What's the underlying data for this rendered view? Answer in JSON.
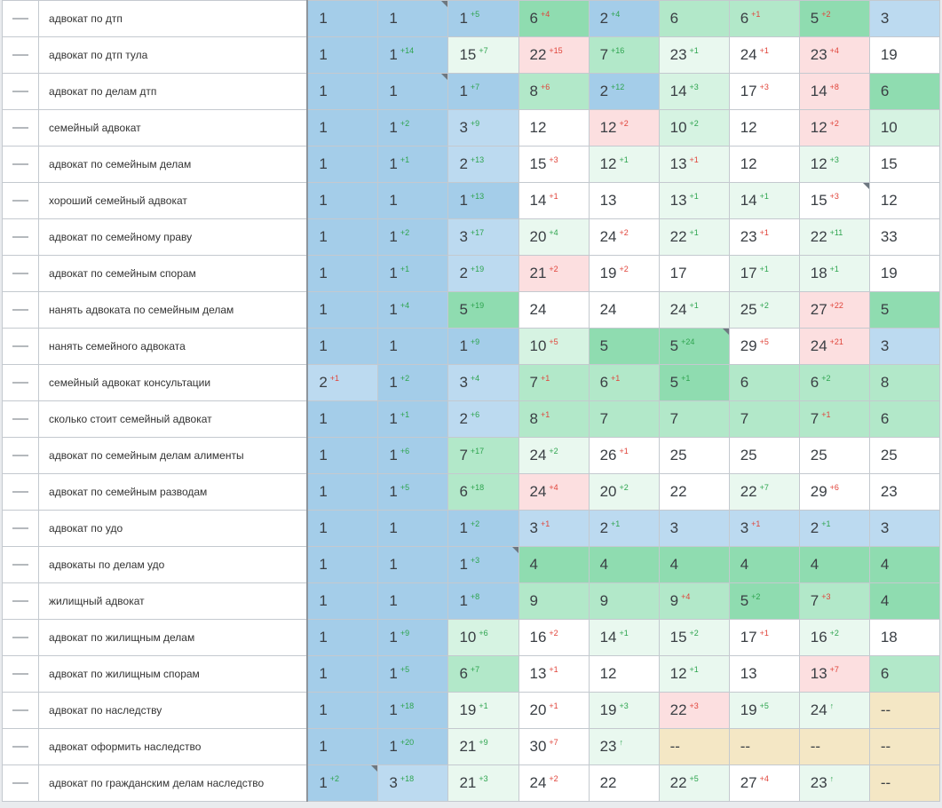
{
  "rows": [
    {
      "keyword": "адвокат по дтп",
      "cells": [
        {
          "v": "1",
          "bg": "b1"
        },
        {
          "v": "1",
          "bg": "b1",
          "corner": true
        },
        {
          "v": "1",
          "d": "+5",
          "dir": "up",
          "bg": "b1"
        },
        {
          "v": "6",
          "d": "+4",
          "dir": "down",
          "bg": "g1"
        },
        {
          "v": "2",
          "d": "+4",
          "dir": "up",
          "bg": "b1"
        },
        {
          "v": "6",
          "bg": "g2"
        },
        {
          "v": "6",
          "d": "+1",
          "dir": "down",
          "bg": "g2"
        },
        {
          "v": "5",
          "d": "+2",
          "dir": "down",
          "bg": "g1"
        },
        {
          "v": "3",
          "bg": "b2"
        }
      ]
    },
    {
      "keyword": "адвокат по дтп тула",
      "cells": [
        {
          "v": "1",
          "bg": "b1"
        },
        {
          "v": "1",
          "d": "+14",
          "dir": "up",
          "bg": "b1"
        },
        {
          "v": "15",
          "d": "+7",
          "dir": "up",
          "bg": "g4"
        },
        {
          "v": "22",
          "d": "+15",
          "dir": "down",
          "bg": "r1"
        },
        {
          "v": "7",
          "d": "+16",
          "dir": "up",
          "bg": "g2"
        },
        {
          "v": "23",
          "d": "+1",
          "dir": "up",
          "bg": "g4"
        },
        {
          "v": "24",
          "d": "+1",
          "dir": "down",
          "bg": "w"
        },
        {
          "v": "23",
          "d": "+4",
          "dir": "down",
          "bg": "r1"
        },
        {
          "v": "19",
          "bg": "w"
        }
      ]
    },
    {
      "keyword": "адвокат по делам дтп",
      "cells": [
        {
          "v": "1",
          "bg": "b1"
        },
        {
          "v": "1",
          "bg": "b1",
          "corner": true
        },
        {
          "v": "1",
          "d": "+7",
          "dir": "up",
          "bg": "b1"
        },
        {
          "v": "8",
          "d": "+6",
          "dir": "down",
          "bg": "g2"
        },
        {
          "v": "2",
          "d": "+12",
          "dir": "up",
          "bg": "b1"
        },
        {
          "v": "14",
          "d": "+3",
          "dir": "up",
          "bg": "g3"
        },
        {
          "v": "17",
          "d": "+3",
          "dir": "down",
          "bg": "w"
        },
        {
          "v": "14",
          "d": "+8",
          "dir": "down",
          "bg": "r1"
        },
        {
          "v": "6",
          "bg": "g1"
        }
      ]
    },
    {
      "keyword": "семейный адвокат",
      "cells": [
        {
          "v": "1",
          "bg": "b1"
        },
        {
          "v": "1",
          "d": "+2",
          "dir": "up",
          "bg": "b1"
        },
        {
          "v": "3",
          "d": "+9",
          "dir": "up",
          "bg": "b2"
        },
        {
          "v": "12",
          "bg": "w"
        },
        {
          "v": "12",
          "d": "+2",
          "dir": "down",
          "bg": "r1"
        },
        {
          "v": "10",
          "d": "+2",
          "dir": "up",
          "bg": "g3"
        },
        {
          "v": "12",
          "bg": "w"
        },
        {
          "v": "12",
          "d": "+2",
          "dir": "down",
          "bg": "r1"
        },
        {
          "v": "10",
          "bg": "g3"
        }
      ]
    },
    {
      "keyword": "адвокат по семейным делам",
      "cells": [
        {
          "v": "1",
          "bg": "b1"
        },
        {
          "v": "1",
          "d": "+1",
          "dir": "up",
          "bg": "b1"
        },
        {
          "v": "2",
          "d": "+13",
          "dir": "up",
          "bg": "b2"
        },
        {
          "v": "15",
          "d": "+3",
          "dir": "down",
          "bg": "w"
        },
        {
          "v": "12",
          "d": "+1",
          "dir": "up",
          "bg": "g4"
        },
        {
          "v": "13",
          "d": "+1",
          "dir": "down",
          "bg": "g4"
        },
        {
          "v": "12",
          "bg": "w"
        },
        {
          "v": "12",
          "d": "+3",
          "dir": "up",
          "bg": "g4"
        },
        {
          "v": "15",
          "bg": "w"
        }
      ]
    },
    {
      "keyword": "хороший семейный адвокат",
      "cells": [
        {
          "v": "1",
          "bg": "b1"
        },
        {
          "v": "1",
          "bg": "b1"
        },
        {
          "v": "1",
          "d": "+13",
          "dir": "up",
          "bg": "b1"
        },
        {
          "v": "14",
          "d": "+1",
          "dir": "down",
          "bg": "w"
        },
        {
          "v": "13",
          "bg": "w"
        },
        {
          "v": "13",
          "d": "+1",
          "dir": "up",
          "bg": "g4"
        },
        {
          "v": "14",
          "d": "+1",
          "dir": "up",
          "bg": "g4"
        },
        {
          "v": "15",
          "d": "+3",
          "dir": "down",
          "bg": "w",
          "corner": true
        },
        {
          "v": "12",
          "bg": "w"
        }
      ]
    },
    {
      "keyword": "адвокат по семейному праву",
      "cells": [
        {
          "v": "1",
          "bg": "b1"
        },
        {
          "v": "1",
          "d": "+2",
          "dir": "up",
          "bg": "b1"
        },
        {
          "v": "3",
          "d": "+17",
          "dir": "up",
          "bg": "b2"
        },
        {
          "v": "20",
          "d": "+4",
          "dir": "up",
          "bg": "g4"
        },
        {
          "v": "24",
          "d": "+2",
          "dir": "down",
          "bg": "w"
        },
        {
          "v": "22",
          "d": "+1",
          "dir": "up",
          "bg": "g4"
        },
        {
          "v": "23",
          "d": "+1",
          "dir": "down",
          "bg": "w"
        },
        {
          "v": "22",
          "d": "+11",
          "dir": "up",
          "bg": "g4"
        },
        {
          "v": "33",
          "bg": "w"
        }
      ]
    },
    {
      "keyword": "адвокат по семейным спорам",
      "cells": [
        {
          "v": "1",
          "bg": "b1"
        },
        {
          "v": "1",
          "d": "+1",
          "dir": "up",
          "bg": "b1"
        },
        {
          "v": "2",
          "d": "+19",
          "dir": "up",
          "bg": "b2"
        },
        {
          "v": "21",
          "d": "+2",
          "dir": "down",
          "bg": "r1"
        },
        {
          "v": "19",
          "d": "+2",
          "dir": "down",
          "bg": "w"
        },
        {
          "v": "17",
          "bg": "w"
        },
        {
          "v": "17",
          "d": "+1",
          "dir": "up",
          "bg": "g4"
        },
        {
          "v": "18",
          "d": "+1",
          "dir": "up",
          "bg": "g4"
        },
        {
          "v": "19",
          "bg": "w"
        }
      ]
    },
    {
      "keyword": "нанять адвоката по семейным делам",
      "cells": [
        {
          "v": "1",
          "bg": "b1"
        },
        {
          "v": "1",
          "d": "+4",
          "dir": "up",
          "bg": "b1"
        },
        {
          "v": "5",
          "d": "+19",
          "dir": "up",
          "bg": "g1"
        },
        {
          "v": "24",
          "bg": "w"
        },
        {
          "v": "24",
          "bg": "w"
        },
        {
          "v": "24",
          "d": "+1",
          "dir": "up",
          "bg": "g4"
        },
        {
          "v": "25",
          "d": "+2",
          "dir": "up",
          "bg": "g4"
        },
        {
          "v": "27",
          "d": "+22",
          "dir": "down",
          "bg": "r1"
        },
        {
          "v": "5",
          "bg": "g1"
        }
      ]
    },
    {
      "keyword": "нанять семейного адвоката",
      "cells": [
        {
          "v": "1",
          "bg": "b1"
        },
        {
          "v": "1",
          "bg": "b1"
        },
        {
          "v": "1",
          "d": "+9",
          "dir": "up",
          "bg": "b1"
        },
        {
          "v": "10",
          "d": "+5",
          "dir": "down",
          "bg": "g3"
        },
        {
          "v": "5",
          "bg": "g1"
        },
        {
          "v": "5",
          "d": "+24",
          "dir": "up",
          "bg": "g1",
          "corner": true
        },
        {
          "v": "29",
          "d": "+5",
          "dir": "down",
          "bg": "w"
        },
        {
          "v": "24",
          "d": "+21",
          "dir": "down",
          "bg": "r1"
        },
        {
          "v": "3",
          "bg": "b2"
        }
      ]
    },
    {
      "keyword": "семейный адвокат консультации",
      "cells": [
        {
          "v": "2",
          "d": "+1",
          "dir": "down",
          "bg": "b2"
        },
        {
          "v": "1",
          "d": "+2",
          "dir": "up",
          "bg": "b1"
        },
        {
          "v": "3",
          "d": "+4",
          "dir": "up",
          "bg": "b2"
        },
        {
          "v": "7",
          "d": "+1",
          "dir": "down",
          "bg": "g2"
        },
        {
          "v": "6",
          "d": "+1",
          "dir": "down",
          "bg": "g2"
        },
        {
          "v": "5",
          "d": "+1",
          "dir": "up",
          "bg": "g1"
        },
        {
          "v": "6",
          "bg": "g2"
        },
        {
          "v": "6",
          "d": "+2",
          "dir": "up",
          "bg": "g2"
        },
        {
          "v": "8",
          "bg": "g2"
        }
      ]
    },
    {
      "keyword": "сколько стоит семейный адвокат",
      "cells": [
        {
          "v": "1",
          "bg": "b1"
        },
        {
          "v": "1",
          "d": "+1",
          "dir": "up",
          "bg": "b1"
        },
        {
          "v": "2",
          "d": "+6",
          "dir": "up",
          "bg": "b2"
        },
        {
          "v": "8",
          "d": "+1",
          "dir": "down",
          "bg": "g2"
        },
        {
          "v": "7",
          "bg": "g2"
        },
        {
          "v": "7",
          "bg": "g2"
        },
        {
          "v": "7",
          "bg": "g2"
        },
        {
          "v": "7",
          "d": "+1",
          "dir": "down",
          "bg": "g2"
        },
        {
          "v": "6",
          "bg": "g2"
        }
      ]
    },
    {
      "keyword": "адвокат по семейным делам алименты",
      "cells": [
        {
          "v": "1",
          "bg": "b1"
        },
        {
          "v": "1",
          "d": "+6",
          "dir": "up",
          "bg": "b1"
        },
        {
          "v": "7",
          "d": "+17",
          "dir": "up",
          "bg": "g2"
        },
        {
          "v": "24",
          "d": "+2",
          "dir": "up",
          "bg": "g4"
        },
        {
          "v": "26",
          "d": "+1",
          "dir": "down",
          "bg": "w"
        },
        {
          "v": "25",
          "bg": "w"
        },
        {
          "v": "25",
          "bg": "w"
        },
        {
          "v": "25",
          "bg": "w"
        },
        {
          "v": "25",
          "bg": "w"
        }
      ]
    },
    {
      "keyword": "адвокат по семейным разводам",
      "cells": [
        {
          "v": "1",
          "bg": "b1"
        },
        {
          "v": "1",
          "d": "+5",
          "dir": "up",
          "bg": "b1"
        },
        {
          "v": "6",
          "d": "+18",
          "dir": "up",
          "bg": "g2"
        },
        {
          "v": "24",
          "d": "+4",
          "dir": "down",
          "bg": "r1"
        },
        {
          "v": "20",
          "d": "+2",
          "dir": "up",
          "bg": "g4"
        },
        {
          "v": "22",
          "bg": "w"
        },
        {
          "v": "22",
          "d": "+7",
          "dir": "up",
          "bg": "g4"
        },
        {
          "v": "29",
          "d": "+6",
          "dir": "down",
          "bg": "w"
        },
        {
          "v": "23",
          "bg": "w"
        }
      ]
    },
    {
      "keyword": "адвокат по удо",
      "cells": [
        {
          "v": "1",
          "bg": "b1"
        },
        {
          "v": "1",
          "bg": "b1"
        },
        {
          "v": "1",
          "d": "+2",
          "dir": "up",
          "bg": "b1"
        },
        {
          "v": "3",
          "d": "+1",
          "dir": "down",
          "bg": "b2"
        },
        {
          "v": "2",
          "d": "+1",
          "dir": "up",
          "bg": "b2"
        },
        {
          "v": "3",
          "bg": "b2"
        },
        {
          "v": "3",
          "d": "+1",
          "dir": "down",
          "bg": "b2"
        },
        {
          "v": "2",
          "d": "+1",
          "dir": "up",
          "bg": "b2"
        },
        {
          "v": "3",
          "bg": "b2"
        }
      ]
    },
    {
      "keyword": "адвокаты по делам удо",
      "cells": [
        {
          "v": "1",
          "bg": "b1"
        },
        {
          "v": "1",
          "bg": "b1"
        },
        {
          "v": "1",
          "d": "+3",
          "dir": "up",
          "bg": "b1",
          "corner": true
        },
        {
          "v": "4",
          "bg": "g1"
        },
        {
          "v": "4",
          "bg": "g1"
        },
        {
          "v": "4",
          "bg": "g1"
        },
        {
          "v": "4",
          "bg": "g1"
        },
        {
          "v": "4",
          "bg": "g1"
        },
        {
          "v": "4",
          "bg": "g1"
        }
      ]
    },
    {
      "keyword": "жилищный адвокат",
      "cells": [
        {
          "v": "1",
          "bg": "b1"
        },
        {
          "v": "1",
          "bg": "b1"
        },
        {
          "v": "1",
          "d": "+8",
          "dir": "up",
          "bg": "b1"
        },
        {
          "v": "9",
          "bg": "g2"
        },
        {
          "v": "9",
          "bg": "g2"
        },
        {
          "v": "9",
          "d": "+4",
          "dir": "down",
          "bg": "g2"
        },
        {
          "v": "5",
          "d": "+2",
          "dir": "up",
          "bg": "g1"
        },
        {
          "v": "7",
          "d": "+3",
          "dir": "down",
          "bg": "g2"
        },
        {
          "v": "4",
          "bg": "g1"
        }
      ]
    },
    {
      "keyword": "адвокат по жилищным делам",
      "cells": [
        {
          "v": "1",
          "bg": "b1"
        },
        {
          "v": "1",
          "d": "+9",
          "dir": "up",
          "bg": "b1"
        },
        {
          "v": "10",
          "d": "+6",
          "dir": "up",
          "bg": "g3"
        },
        {
          "v": "16",
          "d": "+2",
          "dir": "down",
          "bg": "w"
        },
        {
          "v": "14",
          "d": "+1",
          "dir": "up",
          "bg": "g4"
        },
        {
          "v": "15",
          "d": "+2",
          "dir": "up",
          "bg": "g4"
        },
        {
          "v": "17",
          "d": "+1",
          "dir": "down",
          "bg": "w"
        },
        {
          "v": "16",
          "d": "+2",
          "dir": "up",
          "bg": "g4"
        },
        {
          "v": "18",
          "bg": "w"
        }
      ]
    },
    {
      "keyword": "адвокат по жилищным спорам",
      "cells": [
        {
          "v": "1",
          "bg": "b1"
        },
        {
          "v": "1",
          "d": "+5",
          "dir": "up",
          "bg": "b1"
        },
        {
          "v": "6",
          "d": "+7",
          "dir": "up",
          "bg": "g2"
        },
        {
          "v": "13",
          "d": "+1",
          "dir": "down",
          "bg": "w"
        },
        {
          "v": "12",
          "bg": "w"
        },
        {
          "v": "12",
          "d": "+1",
          "dir": "up",
          "bg": "g4"
        },
        {
          "v": "13",
          "bg": "w"
        },
        {
          "v": "13",
          "d": "+7",
          "dir": "down",
          "bg": "r1"
        },
        {
          "v": "6",
          "bg": "g2"
        }
      ]
    },
    {
      "keyword": "адвокат по наследству",
      "cells": [
        {
          "v": "1",
          "bg": "b1"
        },
        {
          "v": "1",
          "d": "+18",
          "dir": "up",
          "bg": "b1"
        },
        {
          "v": "19",
          "d": "+1",
          "dir": "up",
          "bg": "g4"
        },
        {
          "v": "20",
          "d": "+1",
          "dir": "down",
          "bg": "w"
        },
        {
          "v": "19",
          "d": "+3",
          "dir": "up",
          "bg": "g4"
        },
        {
          "v": "22",
          "d": "+3",
          "dir": "down",
          "bg": "r1"
        },
        {
          "v": "19",
          "d": "+5",
          "dir": "up",
          "bg": "g4"
        },
        {
          "v": "24",
          "d": "↑",
          "dir": "up",
          "bg": "g4"
        },
        {
          "v": "--",
          "bg": "y1"
        }
      ]
    },
    {
      "keyword": "адвокат оформить наследство",
      "cells": [
        {
          "v": "1",
          "bg": "b1"
        },
        {
          "v": "1",
          "d": "+20",
          "dir": "up",
          "bg": "b1"
        },
        {
          "v": "21",
          "d": "+9",
          "dir": "up",
          "bg": "g4"
        },
        {
          "v": "30",
          "d": "+7",
          "dir": "down",
          "bg": "w"
        },
        {
          "v": "23",
          "d": "↑",
          "dir": "up",
          "bg": "g4"
        },
        {
          "v": "--",
          "bg": "y1"
        },
        {
          "v": "--",
          "bg": "y1"
        },
        {
          "v": "--",
          "bg": "y1"
        },
        {
          "v": "--",
          "bg": "y1"
        }
      ]
    },
    {
      "keyword": "адвокат по гражданским делам наследство",
      "cells": [
        {
          "v": "1",
          "d": "+2",
          "dir": "up",
          "bg": "b1",
          "corner": true
        },
        {
          "v": "3",
          "d": "+18",
          "dir": "up",
          "bg": "b2"
        },
        {
          "v": "21",
          "d": "+3",
          "dir": "up",
          "bg": "g4"
        },
        {
          "v": "24",
          "d": "+2",
          "dir": "down",
          "bg": "w"
        },
        {
          "v": "22",
          "bg": "w"
        },
        {
          "v": "22",
          "d": "+5",
          "dir": "up",
          "bg": "g4"
        },
        {
          "v": "27",
          "d": "+4",
          "dir": "down",
          "bg": "w"
        },
        {
          "v": "23",
          "d": "↑",
          "dir": "up",
          "bg": "g4"
        },
        {
          "v": "--",
          "bg": "y1"
        }
      ]
    }
  ]
}
